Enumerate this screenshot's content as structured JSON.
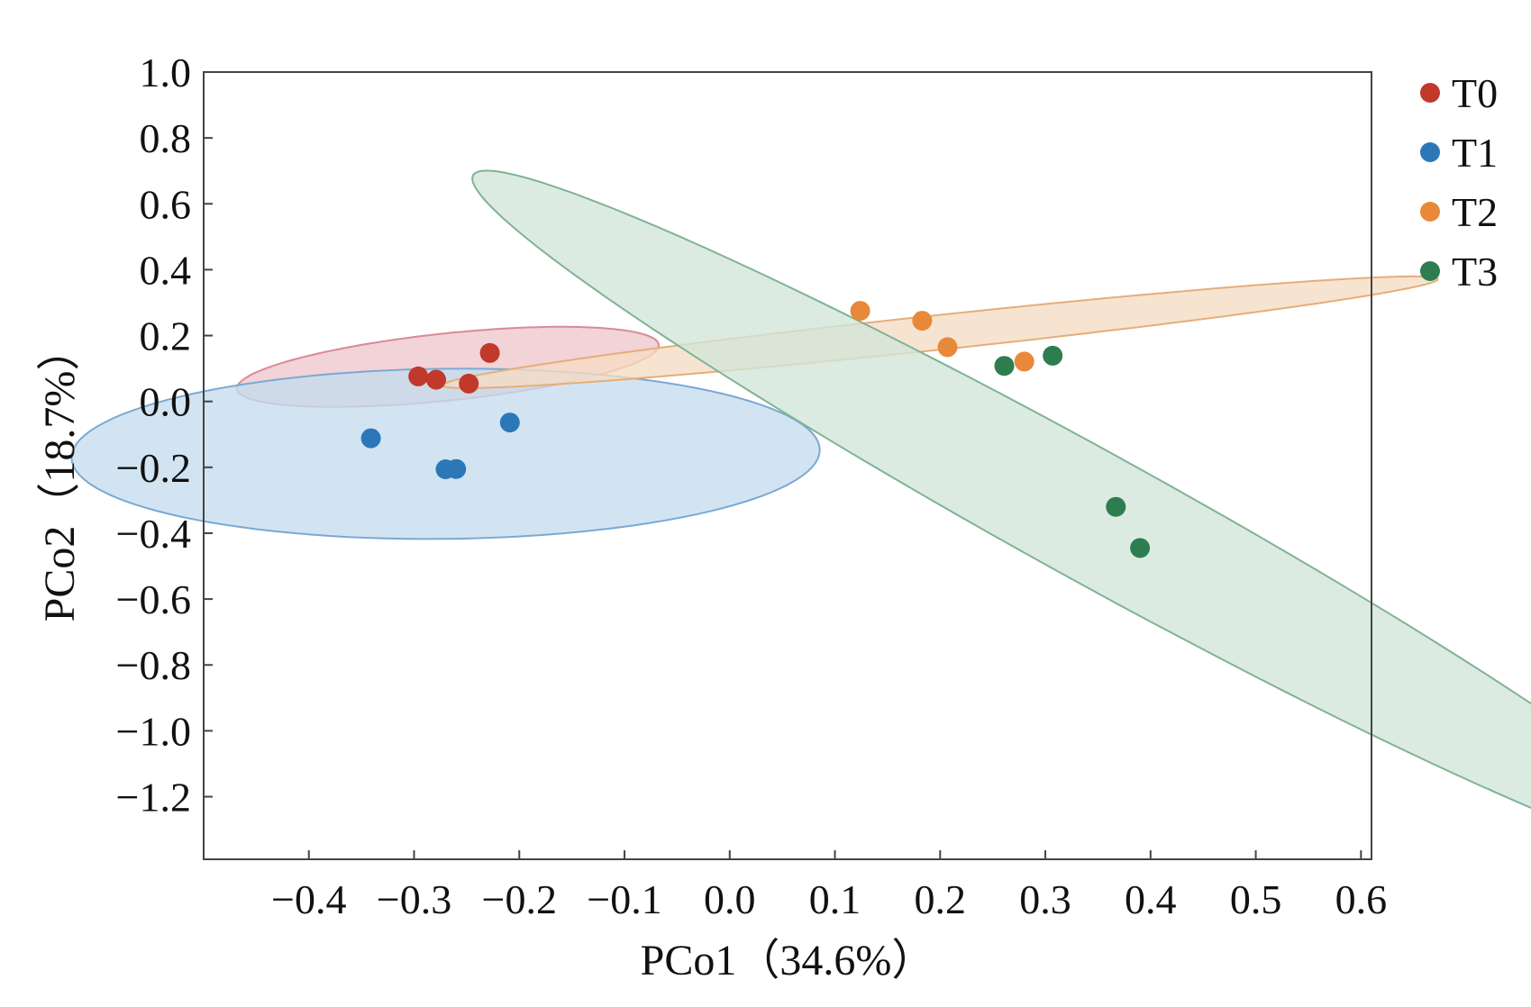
{
  "chart_data": {
    "type": "scatter",
    "xlabel": "PCo1（34.6%）",
    "ylabel": "PCo2（18.7%）",
    "xlim": [
      -0.5,
      0.61
    ],
    "ylim": [
      -1.39,
      1.0
    ],
    "xticks": [
      -0.4,
      -0.3,
      -0.2,
      -0.1,
      0.0,
      0.1,
      0.2,
      0.3,
      0.4,
      0.5,
      0.6
    ],
    "xtick_labels": [
      "−0.4",
      "−0.3",
      "−0.2",
      "−0.1",
      "0.0",
      "0.1",
      "0.2",
      "0.3",
      "0.4",
      "0.5",
      "0.6"
    ],
    "yticks": [
      1.0,
      0.8,
      0.6,
      0.4,
      0.2,
      0.0,
      -0.2,
      -0.4,
      -0.6,
      -0.8,
      -1.0,
      -1.2
    ],
    "ytick_labels": [
      "1.0",
      "0.8",
      "0.6",
      "0.4",
      "0.2",
      "0.0",
      "−0.2",
      "−0.4",
      "−0.6",
      "−0.8",
      "−1.0",
      "−1.2"
    ],
    "legend_position": "right",
    "series": [
      {
        "name": "T0",
        "color": "#c0392b",
        "points": [
          [
            -0.296,
            0.076
          ],
          [
            -0.279,
            0.066
          ],
          [
            -0.248,
            0.054
          ],
          [
            -0.228,
            0.147
          ]
        ],
        "ellipse": {
          "center": [
            -0.268,
            0.105
          ],
          "semi_major": 0.214,
          "semi_minor": 0.096,
          "angle_deg": 23,
          "fill": "#eec6cc",
          "stroke": "#d98a95"
        }
      },
      {
        "name": "T1",
        "color": "#2c77b8",
        "points": [
          [
            -0.341,
            -0.112
          ],
          [
            -0.27,
            -0.206
          ],
          [
            -0.26,
            -0.205
          ],
          [
            -0.209,
            -0.064
          ]
        ],
        "ellipse": {
          "center": [
            -0.27,
            -0.159
          ],
          "semi_major": 0.356,
          "semi_minor": 0.258,
          "angle_deg": 4,
          "fill": "#c5dcee",
          "stroke": "#7aa9d3"
        }
      },
      {
        "name": "T2",
        "color": "#e8893a",
        "points": [
          [
            0.124,
            0.275
          ],
          [
            0.183,
            0.245
          ],
          [
            0.207,
            0.165
          ],
          [
            0.28,
            0.121
          ]
        ],
        "ellipse": {
          "center": [
            0.2,
            0.21
          ],
          "semi_major": 0.5,
          "semi_minor": 0.05,
          "angle_deg": 19,
          "fill": "#f5dcc3",
          "stroke": "#e6ad7a"
        }
      },
      {
        "name": "T3",
        "color": "#2e7d4f",
        "points": [
          [
            0.261,
            0.108
          ],
          [
            0.307,
            0.139
          ],
          [
            0.367,
            -0.32
          ],
          [
            0.39,
            -0.445
          ]
        ],
        "ellipse": {
          "center": [
            0.345,
            -0.35
          ],
          "semi_major": 1.2,
          "semi_minor": 0.11,
          "angle_deg": -61,
          "fill": "#d2e6d8",
          "stroke": "#7fb394"
        }
      }
    ]
  }
}
